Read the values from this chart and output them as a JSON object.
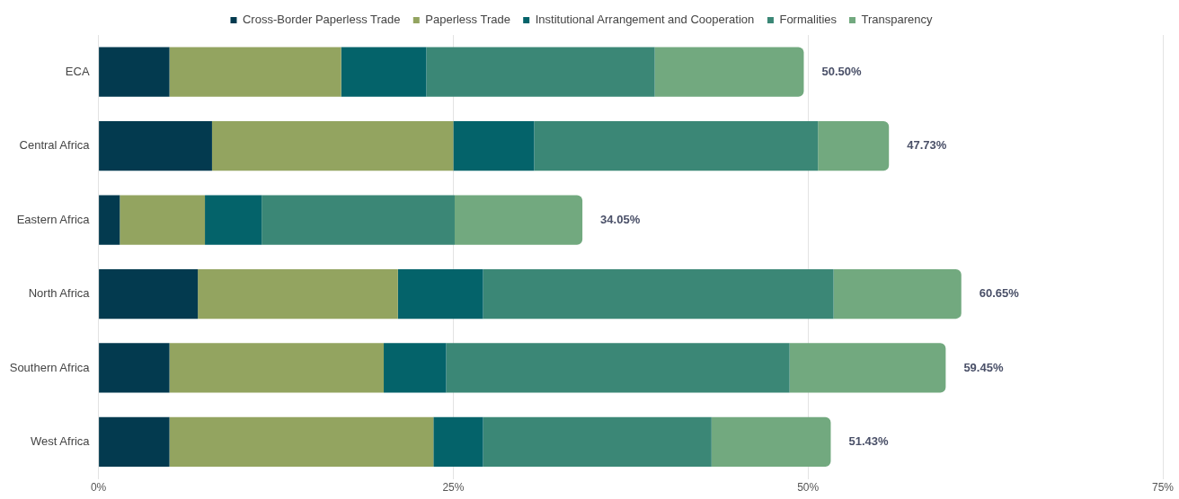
{
  "chart_data": {
    "type": "bar",
    "orientation": "horizontal",
    "stacked": true,
    "categories": [
      "ECA",
      "Central Africa",
      "Eastern Africa",
      "North Africa",
      "Southern Africa",
      "West Africa"
    ],
    "series": [
      {
        "name": "Cross-Border Paperless Trade",
        "color": "#033a4f",
        "values": [
          5.0,
          8.0,
          1.5,
          7.0,
          5.0,
          5.0
        ]
      },
      {
        "name": "Paperless Trade",
        "color": "#93a460",
        "values": [
          12.1,
          17.0,
          6.0,
          14.1,
          15.1,
          18.6
        ]
      },
      {
        "name": "Institutional Arrangement and Cooperation",
        "color": "#04636a",
        "values": [
          6.0,
          5.7,
          4.0,
          6.0,
          4.4,
          3.5
        ]
      },
      {
        "name": "Formalities",
        "color": "#3b8776",
        "values": [
          16.1,
          20.0,
          13.6,
          24.7,
          24.2,
          16.1
        ]
      },
      {
        "name": "Transparency",
        "color": "#72a97f",
        "values": [
          10.5,
          5.0,
          9.0,
          9.0,
          11.0,
          8.4
        ]
      }
    ],
    "annotations": [
      {
        "text": "50.50%",
        "x": 49.7,
        "y": "ECA"
      },
      {
        "text": "47.73%",
        "x": 55.7,
        "y": "Central Africa"
      },
      {
        "text": "34.05%",
        "x": 34.1,
        "y": "Eastern Africa"
      },
      {
        "text": "60.65%",
        "x": 60.8,
        "y": "North Africa"
      },
      {
        "text": "59.45%",
        "x": 59.7,
        "y": "Southern Africa"
      },
      {
        "text": "51.43%",
        "x": 51.6,
        "y": "West Africa"
      }
    ],
    "xlim": [
      0,
      75
    ],
    "xticks": [
      {
        "value": 0,
        "label": "0%"
      },
      {
        "value": 25,
        "label": "25%"
      },
      {
        "value": 50,
        "label": "50%"
      },
      {
        "value": 75,
        "label": "75%"
      }
    ],
    "grid": "x",
    "legend": "top"
  }
}
